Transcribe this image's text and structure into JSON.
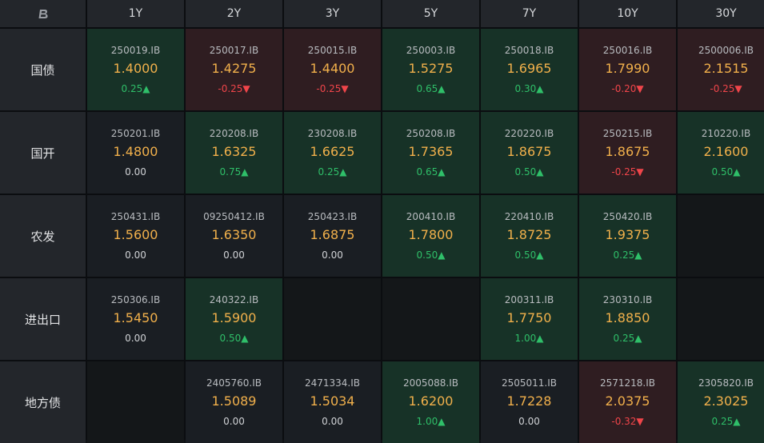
{
  "colors": {
    "up_text": "#2fbf69",
    "down_text": "#f0454a",
    "yield_text": "#f1b04b",
    "up_bg": "#173227",
    "down_bg": "#2f1d21",
    "neutral_bg": "#1a1e23"
  },
  "logo_icon": "brand-logo-icon",
  "tenors": [
    "1Y",
    "2Y",
    "3Y",
    "5Y",
    "7Y",
    "10Y",
    "30Y"
  ],
  "rows": [
    {
      "label": "国债",
      "cells": [
        {
          "code": "250019.IB",
          "yield": "1.4000",
          "change": "0.25▲",
          "dir": "up"
        },
        {
          "code": "250017.IB",
          "yield": "1.4275",
          "change": "-0.25▼",
          "dir": "down"
        },
        {
          "code": "250015.IB",
          "yield": "1.4400",
          "change": "-0.25▼",
          "dir": "down"
        },
        {
          "code": "250003.IB",
          "yield": "1.5275",
          "change": "0.65▲",
          "dir": "up"
        },
        {
          "code": "250018.IB",
          "yield": "1.6965",
          "change": "0.30▲",
          "dir": "up"
        },
        {
          "code": "250016.IB",
          "yield": "1.7990",
          "change": "-0.20▼",
          "dir": "down"
        },
        {
          "code": "2500006.IB",
          "yield": "2.1515",
          "change": "-0.25▼",
          "dir": "down"
        }
      ]
    },
    {
      "label": "国开",
      "cells": [
        {
          "code": "250201.IB",
          "yield": "1.4800",
          "change": "0.00",
          "dir": "flat"
        },
        {
          "code": "220208.IB",
          "yield": "1.6325",
          "change": "0.75▲",
          "dir": "up"
        },
        {
          "code": "230208.IB",
          "yield": "1.6625",
          "change": "0.25▲",
          "dir": "up"
        },
        {
          "code": "250208.IB",
          "yield": "1.7365",
          "change": "0.65▲",
          "dir": "up"
        },
        {
          "code": "220220.IB",
          "yield": "1.8675",
          "change": "0.50▲",
          "dir": "up"
        },
        {
          "code": "250215.IB",
          "yield": "1.8675",
          "change": "-0.25▼",
          "dir": "down"
        },
        {
          "code": "210220.IB",
          "yield": "2.1600",
          "change": "0.50▲",
          "dir": "up"
        }
      ]
    },
    {
      "label": "农发",
      "cells": [
        {
          "code": "250431.IB",
          "yield": "1.5600",
          "change": "0.00",
          "dir": "flat"
        },
        {
          "code": "09250412.IB",
          "yield": "1.6350",
          "change": "0.00",
          "dir": "flat"
        },
        {
          "code": "250423.IB",
          "yield": "1.6875",
          "change": "0.00",
          "dir": "flat"
        },
        {
          "code": "200410.IB",
          "yield": "1.7800",
          "change": "0.50▲",
          "dir": "up"
        },
        {
          "code": "220410.IB",
          "yield": "1.8725",
          "change": "0.50▲",
          "dir": "up"
        },
        {
          "code": "250420.IB",
          "yield": "1.9375",
          "change": "0.25▲",
          "dir": "up"
        },
        null
      ]
    },
    {
      "label": "进出口",
      "cells": [
        {
          "code": "250306.IB",
          "yield": "1.5450",
          "change": "0.00",
          "dir": "flat"
        },
        {
          "code": "240322.IB",
          "yield": "1.5900",
          "change": "0.50▲",
          "dir": "up"
        },
        null,
        null,
        {
          "code": "200311.IB",
          "yield": "1.7750",
          "change": "1.00▲",
          "dir": "up"
        },
        {
          "code": "230310.IB",
          "yield": "1.8850",
          "change": "0.25▲",
          "dir": "up"
        },
        null
      ]
    },
    {
      "label": "地方债",
      "cells": [
        null,
        {
          "code": "2405760.IB",
          "yield": "1.5089",
          "change": "0.00",
          "dir": "flat"
        },
        {
          "code": "2471334.IB",
          "yield": "1.5034",
          "change": "0.00",
          "dir": "flat"
        },
        {
          "code": "2005088.IB",
          "yield": "1.6200",
          "change": "1.00▲",
          "dir": "up"
        },
        {
          "code": "2505011.IB",
          "yield": "1.7228",
          "change": "0.00",
          "dir": "flat"
        },
        {
          "code": "2571218.IB",
          "yield": "2.0375",
          "change": "-0.32▼",
          "dir": "down"
        },
        {
          "code": "2305820.IB",
          "yield": "2.3025",
          "change": "0.25▲",
          "dir": "up"
        }
      ]
    }
  ]
}
